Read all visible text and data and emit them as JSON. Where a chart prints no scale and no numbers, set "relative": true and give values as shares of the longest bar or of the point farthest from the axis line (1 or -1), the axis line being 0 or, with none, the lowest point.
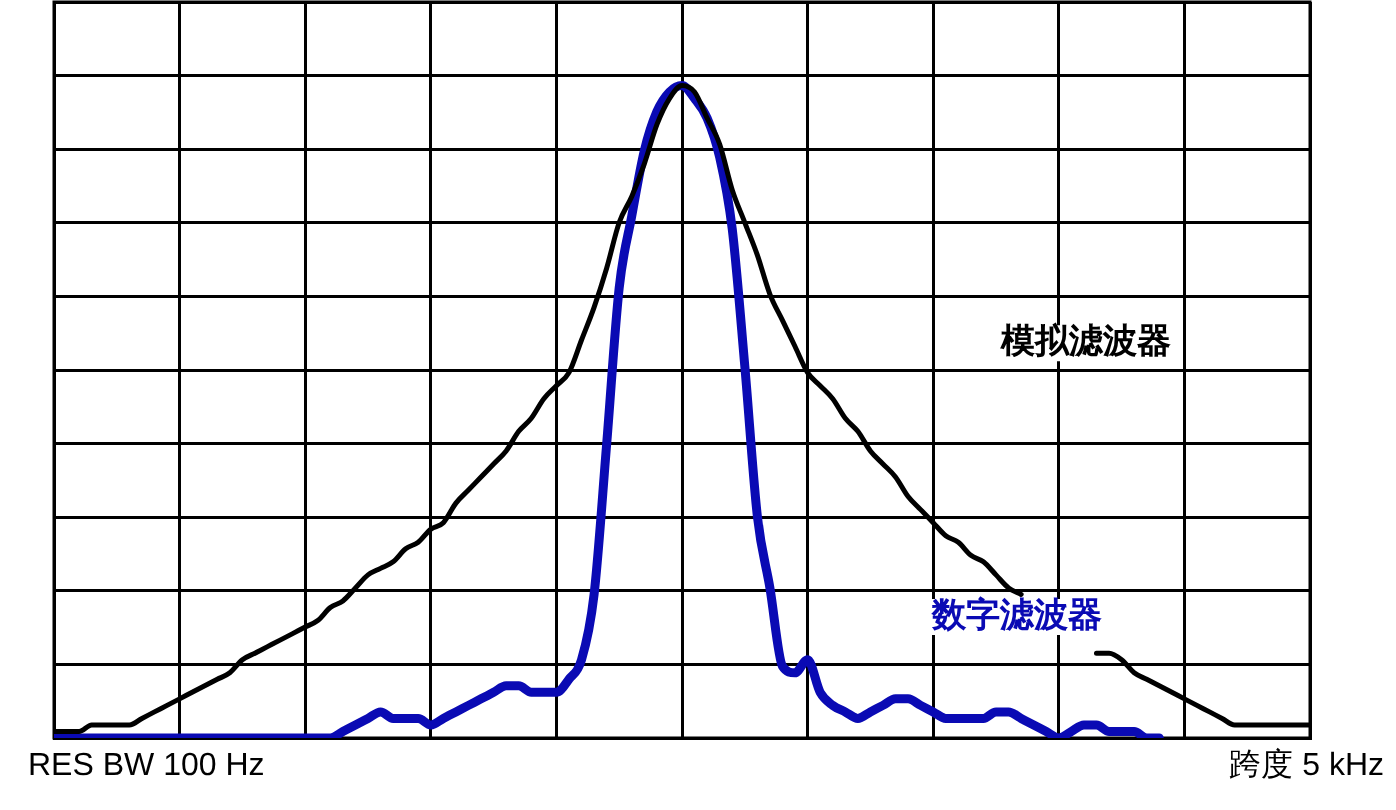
{
  "chart_data": {
    "type": "line",
    "relative": true,
    "grid": true,
    "legend": false,
    "tick_labels": false,
    "marker": "none",
    "line_style": "solid",
    "categories": [
      null,
      null,
      null,
      null,
      null,
      null,
      null,
      null,
      null,
      null,
      null,
      null,
      null,
      null,
      null,
      null,
      null,
      null,
      null,
      null,
      null,
      null,
      null,
      null,
      null,
      null,
      null,
      null,
      null,
      null,
      null,
      null,
      null,
      null,
      null,
      null,
      null,
      null,
      null,
      null,
      null,
      null,
      null,
      null,
      null,
      null,
      null,
      null,
      null,
      null,
      null,
      null,
      null,
      null,
      null,
      null,
      null,
      null,
      null,
      null,
      null,
      null,
      null,
      null,
      null,
      null,
      null,
      null,
      null,
      null,
      null,
      null,
      null,
      null,
      null,
      null,
      null,
      null,
      null,
      null,
      null,
      null,
      null,
      null,
      null,
      null,
      null,
      null,
      null,
      null,
      null,
      null,
      null,
      null,
      null,
      null,
      null,
      null,
      null,
      null,
      null
    ],
    "series": [
      {
        "name": "模拟滤波器",
        "color": "#000000",
        "values": [
          0.01,
          0.01,
          0.01,
          0.02,
          0.02,
          0.02,
          0.02,
          0.03,
          0.04,
          0.05,
          0.06,
          0.07,
          0.08,
          0.09,
          0.1,
          0.12,
          0.13,
          0.14,
          0.15,
          0.16,
          0.17,
          0.18,
          0.2,
          0.21,
          0.23,
          0.25,
          0.26,
          0.27,
          0.29,
          0.3,
          0.32,
          0.33,
          0.36,
          0.38,
          0.4,
          0.42,
          0.44,
          0.47,
          0.49,
          0.52,
          0.54,
          0.56,
          0.61,
          0.66,
          0.72,
          0.79,
          0.83,
          0.88,
          0.94,
          0.98,
          1,
          0.99,
          0.95,
          0.91,
          0.84,
          0.79,
          0.74,
          0.68,
          0.64,
          0.6,
          0.56,
          0.54,
          0.52,
          0.49,
          0.47,
          0.44,
          0.42,
          0.4,
          0.37,
          0.35,
          0.33,
          0.31,
          0.3,
          0.28,
          0.27,
          0.25,
          0.23,
          0.22,
          null,
          null,
          null,
          null,
          null,
          0.13,
          0.13,
          0.12,
          0.1,
          0.09,
          0.08,
          0.07,
          0.06,
          0.05,
          0.04,
          0.03,
          0.02,
          0.02,
          0.02,
          0.02,
          0.02,
          0.02,
          0.02
        ]
      },
      {
        "name": "数字滤波器",
        "color": "#0a0ab4",
        "values": [
          0,
          0,
          0,
          0,
          0,
          0,
          0,
          0,
          0,
          0,
          0,
          0,
          0,
          0,
          0,
          0,
          0,
          0,
          0,
          0,
          0,
          0,
          0,
          0.01,
          0.02,
          0.03,
          0.04,
          0.03,
          0.03,
          0.03,
          0.02,
          0.03,
          0.04,
          0.05,
          0.06,
          0.07,
          0.08,
          0.08,
          0.07,
          0.07,
          0.07,
          0.09,
          0.12,
          0.22,
          0.45,
          0.69,
          0.8,
          0.9,
          0.96,
          0.99,
          1,
          0.98,
          0.95,
          0.89,
          0.78,
          0.57,
          0.34,
          0.23,
          0.11,
          0.1,
          0.12,
          0.07,
          0.05,
          0.04,
          0.03,
          0.04,
          0.05,
          0.06,
          0.06,
          0.05,
          0.04,
          0.03,
          0.03,
          0.03,
          0.03,
          0.04,
          0.04,
          0.03,
          0.02,
          0.01,
          0,
          0.01,
          0.02,
          0.02,
          0.01,
          0.01,
          0.01,
          0,
          0,
          null,
          null,
          null,
          null,
          null,
          null,
          null,
          null,
          null,
          null,
          null,
          null
        ]
      }
    ],
    "annotations": [
      "RES BW 100 Hz",
      "跨度 5 kHz"
    ]
  }
}
